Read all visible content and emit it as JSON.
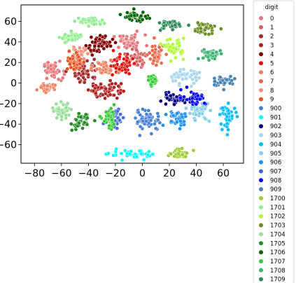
{
  "chart_data": {
    "type": "scatter",
    "title": "",
    "xlabel": "",
    "ylabel": "",
    "xlim": [
      -90,
      75
    ],
    "ylim": [
      -78,
      76
    ],
    "x_ticks": [
      -80,
      -60,
      -40,
      -20,
      0,
      20,
      40,
      60
    ],
    "y_ticks": [
      60,
      40,
      20,
      0,
      -20,
      -40,
      -60
    ],
    "x_tick_labels": [
      "−80",
      "−60",
      "−40",
      "−20",
      "0",
      "20",
      "40",
      "60"
    ],
    "y_tick_labels": [
      "60",
      "40",
      "20",
      "0",
      "−20",
      "−40",
      "−60"
    ],
    "grid": false,
    "legend": {
      "title": "digit",
      "placement": "outside-right",
      "entries": [
        "0",
        "1",
        "2",
        "3",
        "4",
        "5",
        "6",
        "7",
        "8",
        "9",
        "900",
        "901",
        "902",
        "903",
        "904",
        "905",
        "906",
        "907",
        "908",
        "909",
        "1700",
        "1701",
        "1702",
        "1703",
        "1704",
        "1705",
        "1706",
        "1707",
        "1708",
        "1709"
      ]
    },
    "series": [
      {
        "name": "0",
        "color": "#e8767a",
        "clusters": [
          {
            "cx": -10,
            "cy": 40,
            "rx": 12,
            "ry": 7
          },
          {
            "cx": -66,
            "cy": 12,
            "rx": 7,
            "ry": 9
          }
        ]
      },
      {
        "name": "1",
        "color": "#d96060",
        "clusters": [
          {
            "cx": -4,
            "cy": 24,
            "rx": 7,
            "ry": 9
          }
        ]
      },
      {
        "name": "2",
        "color": "#a52a2a",
        "clusters": [
          {
            "cx": -42,
            "cy": 12,
            "rx": 9,
            "ry": 11
          }
        ]
      },
      {
        "name": "3",
        "color": "#b22222",
        "clusters": [
          {
            "cx": -28,
            "cy": -6,
            "rx": 12,
            "ry": 9
          }
        ]
      },
      {
        "name": "4",
        "color": "#800000",
        "clusters": [
          {
            "cx": -32,
            "cy": 38,
            "rx": 10,
            "ry": 9
          }
        ]
      },
      {
        "name": "5",
        "color": "#e81010",
        "clusters": [
          {
            "cx": -16,
            "cy": 18,
            "rx": 9,
            "ry": 10
          }
        ]
      },
      {
        "name": "6",
        "color": "#f08060",
        "clusters": [
          {
            "cx": -28,
            "cy": 14,
            "rx": 8,
            "ry": 7
          },
          {
            "cx": -72,
            "cy": -4,
            "rx": 5,
            "ry": 4
          }
        ]
      },
      {
        "name": "7",
        "color": "#f06848",
        "clusters": [
          {
            "cx": 10,
            "cy": 26,
            "rx": 6,
            "ry": 12
          }
        ]
      },
      {
        "name": "8",
        "color": "#f4907a",
        "clusters": [
          {
            "cx": -48,
            "cy": 28,
            "rx": 6,
            "ry": 6
          }
        ]
      },
      {
        "name": "9",
        "color": "#e8501e",
        "clusters": [
          {
            "cx": -50,
            "cy": 20,
            "rx": 5,
            "ry": 10
          }
        ]
      },
      {
        "name": "900",
        "color": "#4a7fd8",
        "clusters": [
          {
            "cx": 4,
            "cy": -36,
            "rx": 10,
            "ry": 10
          }
        ]
      },
      {
        "name": "901",
        "color": "#00ffff",
        "clusters": [
          {
            "cx": -6,
            "cy": -70,
            "rx": 18,
            "ry": 4
          }
        ]
      },
      {
        "name": "902",
        "color": "#000080",
        "clusters": [
          {
            "cx": 22,
            "cy": -16,
            "rx": 9,
            "ry": 5
          }
        ]
      },
      {
        "name": "903",
        "color": "#aad6ee",
        "clusters": [
          {
            "cx": 30,
            "cy": 6,
            "rx": 12,
            "ry": 7
          }
        ]
      },
      {
        "name": "904",
        "color": "#00bfff",
        "clusters": [
          {
            "cx": 64,
            "cy": -32,
            "rx": 6,
            "ry": 11
          }
        ]
      },
      {
        "name": "905",
        "color": "#87ceeb",
        "clusters": [
          {
            "cx": 42,
            "cy": -28,
            "rx": 8,
            "ry": 9
          }
        ]
      },
      {
        "name": "906",
        "color": "#1e90ff",
        "clusters": [
          {
            "cx": 26,
            "cy": -34,
            "rx": 9,
            "ry": 8
          }
        ]
      },
      {
        "name": "907",
        "color": "#4169e1",
        "clusters": [
          {
            "cx": -20,
            "cy": -34,
            "rx": 7,
            "ry": 10
          }
        ]
      },
      {
        "name": "908",
        "color": "#0000ff",
        "clusters": [
          {
            "cx": 38,
            "cy": -14,
            "rx": 9,
            "ry": 7
          }
        ]
      },
      {
        "name": "909",
        "color": "#4682b4",
        "clusters": [
          {
            "cx": 60,
            "cy": 2,
            "rx": 8,
            "ry": 5
          }
        ]
      },
      {
        "name": "1700",
        "color": "#9acd32",
        "clusters": [
          {
            "cx": 28,
            "cy": -69,
            "rx": 8,
            "ry": 4
          }
        ]
      },
      {
        "name": "1701",
        "color": "#90ee90",
        "clusters": [
          {
            "cx": -38,
            "cy": 60,
            "rx": 9,
            "ry": 4
          },
          {
            "cx": -52,
            "cy": 44,
            "rx": 8,
            "ry": 5
          }
        ]
      },
      {
        "name": "1702",
        "color": "#adff2f",
        "clusters": [
          {
            "cx": 24,
            "cy": 34,
            "rx": 7,
            "ry": 9
          }
        ]
      },
      {
        "name": "1703",
        "color": "#6b8e23",
        "clusters": [
          {
            "cx": 46,
            "cy": 53,
            "rx": 9,
            "ry": 6
          }
        ]
      },
      {
        "name": "1704",
        "color": "#98e098",
        "clusters": [
          {
            "cx": -60,
            "cy": -27,
            "rx": 7,
            "ry": 7
          }
        ]
      },
      {
        "name": "1705",
        "color": "#228b22",
        "clusters": [
          {
            "cx": -46,
            "cy": -38,
            "rx": 6,
            "ry": 8
          }
        ]
      },
      {
        "name": "1706",
        "color": "#006400",
        "clusters": [
          {
            "cx": -5,
            "cy": 65,
            "rx": 9,
            "ry": 5
          }
        ]
      },
      {
        "name": "1707",
        "color": "#32cd32",
        "clusters": [
          {
            "cx": -24,
            "cy": -36,
            "rx": 5,
            "ry": 9
          },
          {
            "cx": 8,
            "cy": 2,
            "rx": 3,
            "ry": 5
          }
        ]
      },
      {
        "name": "1708",
        "color": "#3cb371",
        "clusters": [
          {
            "cx": 50,
            "cy": 28,
            "rx": 8,
            "ry": 5
          }
        ]
      },
      {
        "name": "1709",
        "color": "#2e8b57",
        "clusters": [
          {
            "cx": 20,
            "cy": 56,
            "rx": 8,
            "ry": 5
          }
        ]
      }
    ]
  }
}
